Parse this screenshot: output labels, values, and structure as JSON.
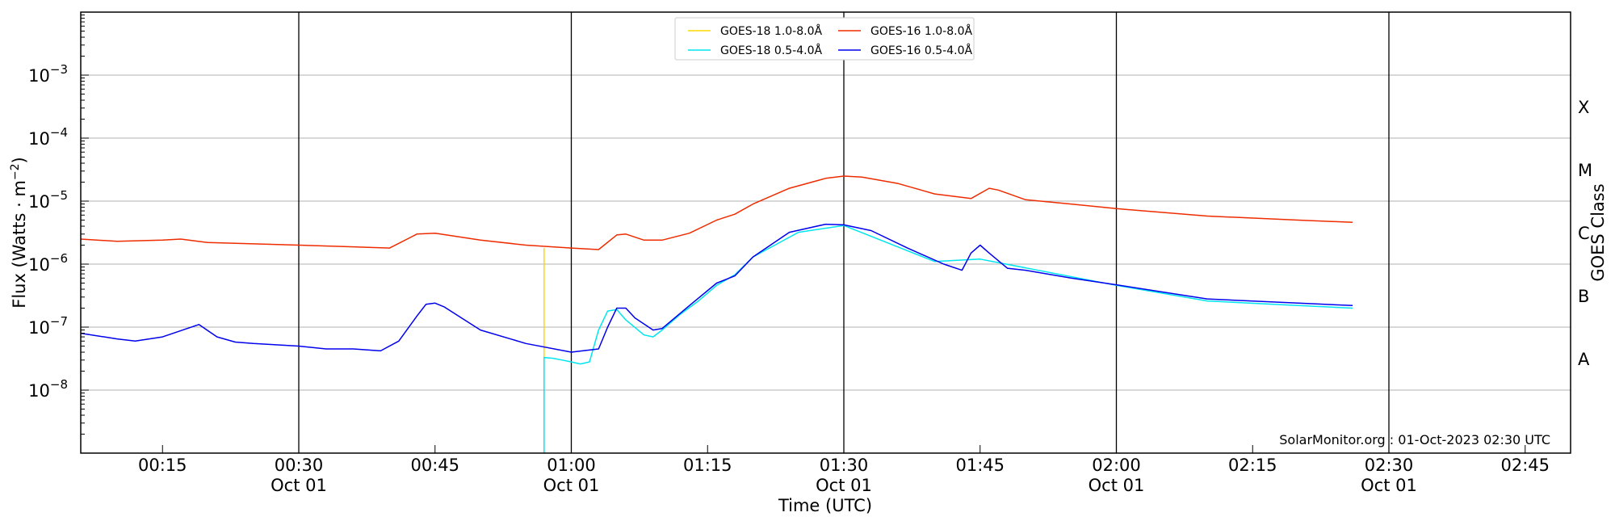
{
  "chart_data": {
    "type": "line",
    "title": "",
    "xlabel": "Time (UTC)",
    "ylabel": "Flux (Watts · m",
    "ylabel_superscript": "−2",
    "ylabel_close": ")",
    "right_label": "GOES Class",
    "y_scale": "log",
    "ylim": [
      1e-09,
      0.01
    ],
    "xlim": [
      "00:06",
      "02:50"
    ],
    "x_ticks": [
      {
        "t": "00:15",
        "label": "00:15",
        "sub": ""
      },
      {
        "t": "00:30",
        "label": "00:30",
        "sub": "Oct 01"
      },
      {
        "t": "00:45",
        "label": "00:45",
        "sub": ""
      },
      {
        "t": "01:00",
        "label": "01:00",
        "sub": "Oct 01"
      },
      {
        "t": "01:15",
        "label": "01:15",
        "sub": ""
      },
      {
        "t": "01:30",
        "label": "01:30",
        "sub": "Oct 01"
      },
      {
        "t": "01:45",
        "label": "01:45",
        "sub": ""
      },
      {
        "t": "02:00",
        "label": "02:00",
        "sub": "Oct 01"
      },
      {
        "t": "02:15",
        "label": "02:15",
        "sub": ""
      },
      {
        "t": "02:30",
        "label": "02:30",
        "sub": "Oct 01"
      },
      {
        "t": "02:45",
        "label": "02:45",
        "sub": ""
      }
    ],
    "vertical_lines": [
      "00:30",
      "01:00",
      "01:30",
      "02:00",
      "02:30"
    ],
    "y_ticks": [
      {
        "value": 1e-08,
        "base": "10",
        "exp": "−8"
      },
      {
        "value": 1e-07,
        "base": "10",
        "exp": "−7"
      },
      {
        "value": 1e-06,
        "base": "10",
        "exp": "−6"
      },
      {
        "value": 1e-05,
        "base": "10",
        "exp": "−5"
      },
      {
        "value": 0.0001,
        "base": "10",
        "exp": "−4"
      },
      {
        "value": 0.001,
        "base": "10",
        "exp": "−3"
      }
    ],
    "grid_y": [
      1e-08,
      1e-07,
      1e-06,
      1e-05,
      0.0001,
      0.001
    ],
    "goes_classes": [
      {
        "label": "A",
        "value": 3.16e-08
      },
      {
        "label": "B",
        "value": 3.16e-07
      },
      {
        "label": "C",
        "value": 3.16e-06
      },
      {
        "label": "M",
        "value": 3.16e-05
      },
      {
        "label": "X",
        "value": 0.000316
      }
    ],
    "grid": true,
    "legend_position": "top-center",
    "annotation": "SolarMonitor.org : 01-Oct-2023 02:30 UTC",
    "series": [
      {
        "name": "GOES-18 1.0-8.0Å",
        "color": "#ffd700",
        "x": [
          "00:57",
          "00:57"
        ],
        "y": [
          1.8e-06,
          3.3e-08
        ]
      },
      {
        "name": "GOES-18 0.5-4.0Å",
        "color": "#00e5ee",
        "x": [
          "00:57",
          "00:57",
          "00:58",
          "00:59",
          "01:00",
          "01:01",
          "01:02",
          "01:03",
          "01:04",
          "01:05",
          "01:06",
          "01:08",
          "01:09",
          "01:10",
          "01:12",
          "01:14",
          "01:16",
          "01:18",
          "01:20",
          "01:25",
          "01:30",
          "01:40",
          "01:45",
          "02:00",
          "02:10",
          "02:20",
          "02:26"
        ],
        "y": [
          1e-09,
          3.3e-08,
          3.2e-08,
          3e-08,
          2.8e-08,
          2.6e-08,
          2.8e-08,
          9e-08,
          1.8e-07,
          1.9e-07,
          1.3e-07,
          7.5e-08,
          7e-08,
          9e-08,
          1.6e-07,
          2.6e-07,
          4.6e-07,
          6.8e-07,
          1.3e-06,
          3.2e-06,
          4.1e-06,
          1.1e-06,
          1.2e-06,
          4.6e-07,
          2.6e-07,
          2.2e-07,
          2e-07
        ]
      },
      {
        "name": "GOES-16 1.0-8.0Å",
        "color": "#ee2c00",
        "x": [
          "00:06",
          "00:10",
          "00:15",
          "00:17",
          "00:20",
          "00:25",
          "00:30",
          "00:35",
          "00:40",
          "00:43",
          "00:45",
          "00:50",
          "00:55",
          "01:00",
          "01:03",
          "01:05",
          "01:06",
          "01:08",
          "01:10",
          "01:13",
          "01:16",
          "01:18",
          "01:20",
          "01:24",
          "01:28",
          "01:30",
          "01:32",
          "01:36",
          "01:40",
          "01:44",
          "01:46",
          "01:47",
          "01:50",
          "01:55",
          "02:00",
          "02:10",
          "02:20",
          "02:26"
        ],
        "y": [
          2.5e-06,
          2.3e-06,
          2.4e-06,
          2.5e-06,
          2.2e-06,
          2.1e-06,
          2e-06,
          1.9e-06,
          1.8e-06,
          3e-06,
          3.1e-06,
          2.4e-06,
          2e-06,
          1.8e-06,
          1.7e-06,
          2.9e-06,
          3e-06,
          2.4e-06,
          2.4e-06,
          3.1e-06,
          5e-06,
          6.2e-06,
          9e-06,
          1.6e-05,
          2.3e-05,
          2.5e-05,
          2.4e-05,
          1.9e-05,
          1.3e-05,
          1.1e-05,
          1.6e-05,
          1.5e-05,
          1.05e-05,
          9e-06,
          7.6e-06,
          5.8e-06,
          5e-06,
          4.6e-06
        ]
      },
      {
        "name": "GOES-16 0.5-4.0Å",
        "color": "#0000ee",
        "x": [
          "00:06",
          "00:10",
          "00:12",
          "00:15",
          "00:19",
          "00:21",
          "00:23",
          "00:25",
          "00:30",
          "00:33",
          "00:36",
          "00:39",
          "00:41",
          "00:43",
          "00:44",
          "00:45",
          "00:46",
          "00:50",
          "00:55",
          "01:00",
          "01:03",
          "01:04",
          "01:05",
          "01:06",
          "01:07",
          "01:09",
          "01:10",
          "01:13",
          "01:16",
          "01:18",
          "01:20",
          "01:24",
          "01:28",
          "01:30",
          "01:33",
          "01:37",
          "01:41",
          "01:43",
          "01:44",
          "01:45",
          "01:46",
          "01:48",
          "01:50",
          "01:55",
          "02:00",
          "02:10",
          "02:20",
          "02:26"
        ],
        "y": [
          8e-08,
          6.5e-08,
          6e-08,
          7e-08,
          1.1e-07,
          7e-08,
          5.8e-08,
          5.5e-08,
          5e-08,
          4.5e-08,
          4.5e-08,
          4.2e-08,
          6e-08,
          1.5e-07,
          2.3e-07,
          2.4e-07,
          2.1e-07,
          9e-08,
          5.5e-08,
          4e-08,
          4.5e-08,
          1e-07,
          2e-07,
          2e-07,
          1.4e-07,
          9e-08,
          9.5e-08,
          2.2e-07,
          5e-07,
          6.5e-07,
          1.3e-06,
          3.2e-06,
          4.3e-06,
          4.2e-06,
          3.4e-06,
          1.8e-06,
          1e-06,
          8e-07,
          1.5e-06,
          2e-06,
          1.5e-06,
          8.6e-07,
          8e-07,
          6e-07,
          4.7e-07,
          2.8e-07,
          2.4e-07,
          2.2e-07
        ]
      }
    ]
  }
}
